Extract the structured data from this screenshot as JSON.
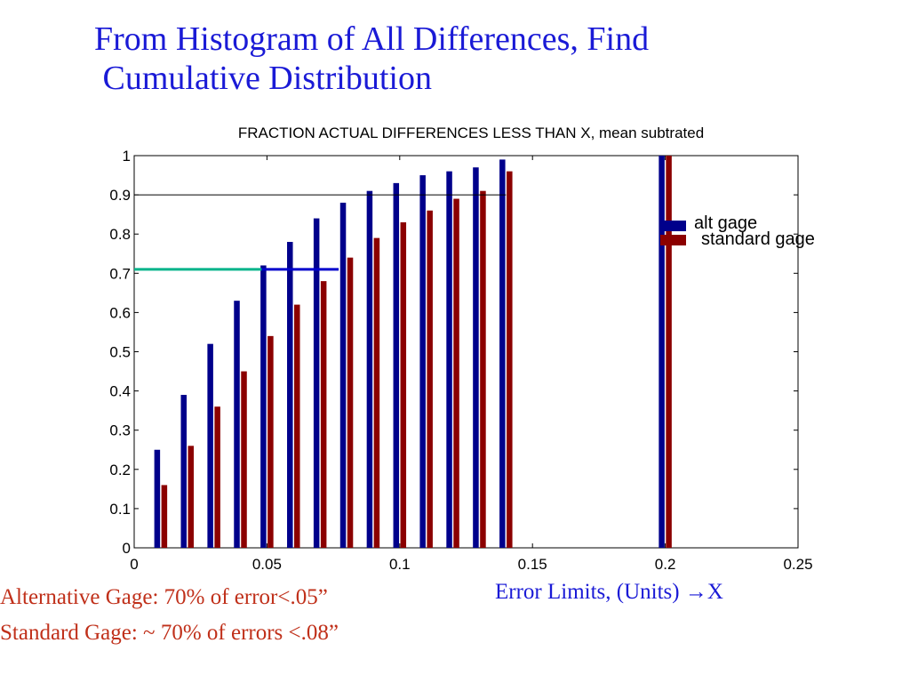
{
  "slide": {
    "title_line1": "From Histogram of All Differences, Find",
    "title_line2": " Cumulative Distribution",
    "x_axis_caption": "Error Limits, (Units) ",
    "x_axis_caption_arrow": "→",
    "x_axis_caption_var": "X",
    "note_alt": "Alternative Gage: 70% of error<.05”",
    "note_std": "Standard Gage: ~ 70% of errors <.08”"
  },
  "chart_data": {
    "type": "bar",
    "title": "FRACTION ACTUAL DIFFERENCES LESS THAN X, mean subtrated",
    "xlim": [
      0,
      0.25
    ],
    "ylim": [
      0,
      1
    ],
    "x_ticks": [
      "0",
      "0.05",
      "0.1",
      "0.15",
      "0.2",
      "0.25"
    ],
    "y_ticks": [
      "0",
      "0.1",
      "0.2",
      "0.3",
      "0.4",
      "0.5",
      "0.6",
      "0.7",
      "0.8",
      "0.9",
      "1"
    ],
    "x": [
      0.01,
      0.02,
      0.03,
      0.04,
      0.05,
      0.06,
      0.07,
      0.08,
      0.09,
      0.1,
      0.11,
      0.12,
      0.13,
      0.14,
      0.2
    ],
    "series": [
      {
        "name": "alt gage",
        "color": "#00008b",
        "values": [
          0.25,
          0.39,
          0.52,
          0.63,
          0.72,
          0.78,
          0.84,
          0.88,
          0.91,
          0.93,
          0.95,
          0.96,
          0.97,
          0.99,
          1.0
        ]
      },
      {
        "name": "standard gage",
        "color": "#8b0000",
        "values": [
          0.16,
          0.26,
          0.36,
          0.45,
          0.54,
          0.62,
          0.68,
          0.74,
          0.79,
          0.83,
          0.86,
          0.89,
          0.91,
          0.96,
          1.0
        ]
      }
    ],
    "reference_lines": [
      {
        "name": "cumulative-0.9-line",
        "y": 0.9,
        "x_from": 0,
        "x_to": 0.14,
        "color": "#000000"
      },
      {
        "name": "cumulative-0.7-line-alt",
        "y": 0.71,
        "x_from": 0,
        "x_to": 0.048,
        "color": "#00b38a"
      },
      {
        "name": "cumulative-0.7-line-std",
        "y": 0.71,
        "x_from": 0.048,
        "x_to": 0.077,
        "color": "#0000cc"
      }
    ],
    "legend": "right",
    "grid": false
  }
}
